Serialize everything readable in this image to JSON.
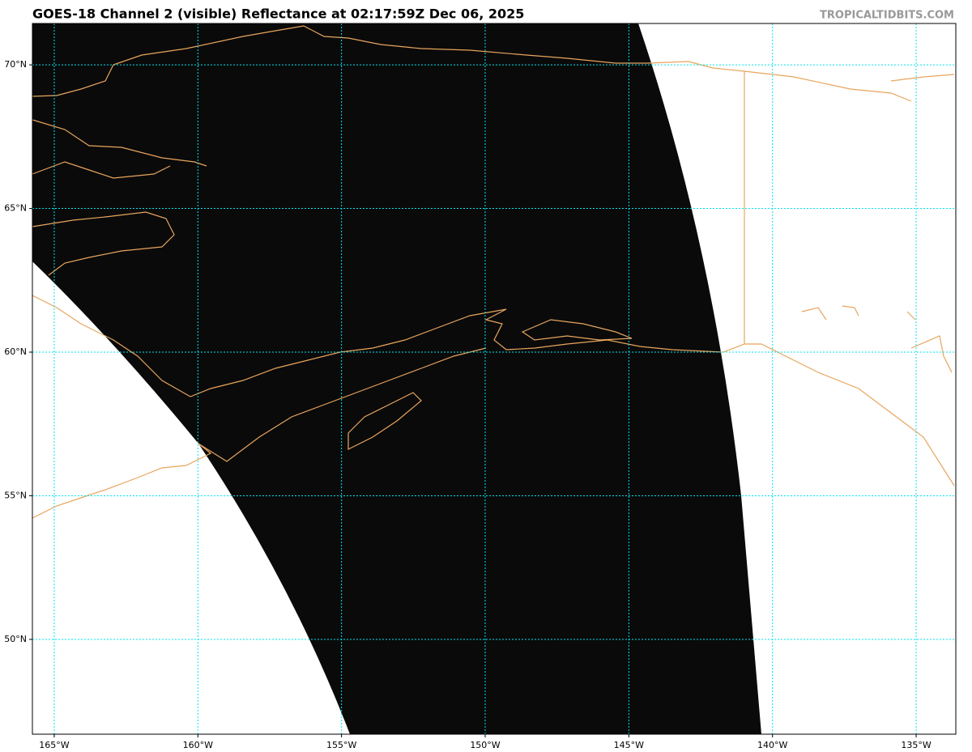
{
  "map": {
    "title": "GOES-18 Channel 2 (visible) Reflectance at 02:17:59Z Dec 06, 2025",
    "source": "TROPICALTIDBITS.COM",
    "xlim": [
      -165.76,
      -133.62
    ],
    "ylim": [
      46.7,
      71.44
    ],
    "xticks": [
      {
        "value": -165,
        "label": "165°W"
      },
      {
        "value": -160,
        "label": "160°W"
      },
      {
        "value": -155,
        "label": "155°W"
      },
      {
        "value": -150,
        "label": "150°W"
      },
      {
        "value": -145,
        "label": "145°W"
      },
      {
        "value": -140,
        "label": "140°W"
      },
      {
        "value": -135,
        "label": "135°W"
      }
    ],
    "yticks": [
      {
        "value": 50,
        "label": "50°N"
      },
      {
        "value": 55,
        "label": "55°N"
      },
      {
        "value": 60,
        "label": "60°N"
      },
      {
        "value": 65,
        "label": "65°N"
      },
      {
        "value": 70,
        "label": "70°N"
      }
    ],
    "grid_color": "#00e5ee"
  }
}
